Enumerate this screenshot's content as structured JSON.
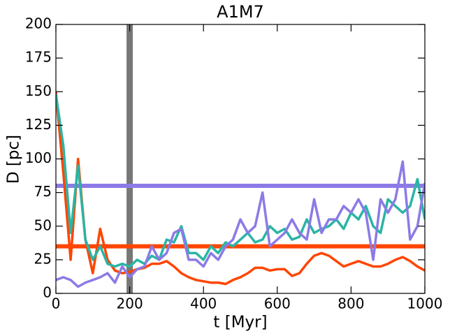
{
  "chart_data": {
    "type": "line",
    "title": "A1M7",
    "x_label": "t [Myr]",
    "y_label": "D [pc]",
    "x": [
      0,
      20,
      40,
      60,
      80,
      100,
      120,
      140,
      160,
      180,
      200,
      220,
      240,
      260,
      280,
      300,
      320,
      340,
      360,
      380,
      400,
      420,
      440,
      460,
      480,
      500,
      520,
      540,
      560,
      580,
      600,
      620,
      640,
      660,
      680,
      700,
      720,
      740,
      760,
      780,
      800,
      820,
      840,
      860,
      880,
      900,
      920,
      940,
      960,
      980,
      1000
    ],
    "series": [
      {
        "color": "#ff4500",
        "values": [
          150,
          90,
          25,
          100,
          40,
          15,
          48,
          25,
          17,
          15,
          16,
          18,
          19,
          22,
          22,
          24,
          20,
          15,
          12,
          10,
          9,
          8,
          8,
          7,
          10,
          12,
          15,
          19,
          19,
          17,
          18,
          18,
          13,
          15,
          22,
          28,
          30,
          28,
          24,
          20,
          22,
          24,
          22,
          20,
          20,
          22,
          25,
          27,
          24,
          20,
          17
        ]
      },
      {
        "color": "#2ab5a5",
        "values": [
          148,
          110,
          45,
          95,
          40,
          25,
          35,
          22,
          20,
          22,
          20,
          25,
          22,
          28,
          25,
          40,
          38,
          50,
          30,
          30,
          25,
          35,
          30,
          38,
          35,
          40,
          45,
          38,
          40,
          50,
          45,
          48,
          40,
          42,
          55,
          45,
          48,
          50,
          55,
          48,
          60,
          55,
          65,
          50,
          45,
          70,
          65,
          60,
          65,
          85,
          55
        ]
      },
      {
        "color": "#8c7ae6",
        "values": [
          10,
          12,
          10,
          5,
          8,
          10,
          12,
          15,
          8,
          20,
          12,
          18,
          20,
          35,
          25,
          30,
          45,
          48,
          25,
          25,
          20,
          30,
          25,
          35,
          40,
          55,
          45,
          50,
          75,
          35,
          40,
          45,
          55,
          45,
          40,
          70,
          45,
          55,
          55,
          65,
          60,
          70,
          60,
          25,
          70,
          60,
          70,
          98,
          40,
          50,
          82
        ]
      }
    ],
    "hlines": [
      {
        "y": 80,
        "color": "#8c7ae6"
      },
      {
        "y": 35,
        "color": "#ff4500"
      }
    ],
    "vlines": [
      {
        "x": 200,
        "color": "#777777"
      }
    ],
    "xlim": [
      0,
      1000
    ],
    "ylim": [
      0,
      200
    ],
    "xticks": [
      0,
      200,
      400,
      600,
      800,
      1000
    ],
    "yticks": [
      0,
      25,
      50,
      75,
      100,
      125,
      150,
      175,
      200
    ]
  }
}
